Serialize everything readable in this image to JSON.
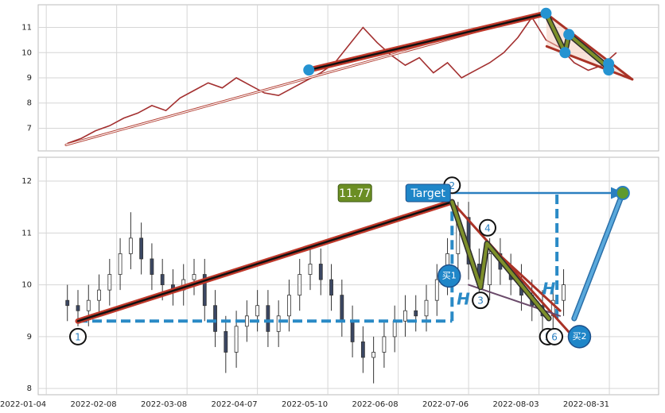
{
  "chart_data": [
    {
      "type": "line",
      "color": "#a33030",
      "x": [
        6,
        10,
        14,
        18,
        22,
        26,
        30,
        34,
        38,
        42,
        46,
        50,
        54,
        58,
        62,
        66,
        70,
        74,
        78,
        82,
        86,
        90,
        94,
        98,
        102,
        106,
        110,
        114,
        118,
        122,
        126,
        130,
        134,
        138,
        142,
        146,
        150,
        154,
        158,
        162
      ],
      "values": [
        6.4,
        6.6,
        6.9,
        7.1,
        7.4,
        7.6,
        7.9,
        7.7,
        8.2,
        8.5,
        8.8,
        8.6,
        9.0,
        8.7,
        8.4,
        8.3,
        8.6,
        8.9,
        9.2,
        9.6,
        10.3,
        11.0,
        10.4,
        9.9,
        9.5,
        9.8,
        9.2,
        9.6,
        9.0,
        9.3,
        9.6,
        10.0,
        10.6,
        11.4,
        10.5,
        10.2,
        9.6,
        9.3,
        9.5,
        10.0
      ],
      "xlim": [
        -2.3,
        174
      ],
      "xticks": [
        0,
        20,
        40,
        60,
        80,
        100,
        120,
        140,
        160
      ],
      "ylim": [
        6.1,
        11.9
      ],
      "yticks": [
        7,
        8,
        9,
        10,
        11
      ],
      "grid": true,
      "annotations": {
        "arrow": [
          [
            5.6,
            6.34
          ],
          [
            141.8,
            11.59
          ]
        ],
        "trend": [
          [
            74.6,
            9.31
          ],
          [
            142,
            11.56
          ]
        ],
        "channel": [
          [
            [
              142,
              11.56
            ],
            [
              166.5,
              8.94
            ]
          ],
          [
            [
              142.2,
              10.25
            ],
            [
              166.5,
              8.94
            ]
          ]
        ],
        "zigzag": [
          [
            142,
            11.56
          ],
          [
            147.4,
            10.0
          ],
          [
            148.5,
            10.72
          ],
          [
            159.8,
            9.4
          ]
        ],
        "dots": [
          [
            74.6,
            9.31
          ],
          [
            142,
            11.56
          ],
          [
            148.5,
            10.72
          ],
          [
            147.4,
            10.0
          ],
          [
            159.8,
            9.56
          ],
          [
            159.8,
            9.31
          ]
        ]
      }
    },
    {
      "type": "candlestick",
      "x": [
        6,
        9,
        12,
        15,
        18,
        21,
        24,
        27,
        30,
        33,
        36,
        39,
        42,
        45,
        48,
        51,
        54,
        57,
        60,
        63,
        66,
        69,
        72,
        75,
        78,
        81,
        84,
        87,
        90,
        93,
        96,
        99,
        102,
        105,
        108,
        111,
        114,
        117,
        120,
        123,
        126,
        129,
        132,
        135,
        138,
        141,
        144,
        147
      ],
      "open": [
        9.7,
        9.6,
        9.5,
        9.7,
        9.9,
        10.2,
        10.6,
        10.9,
        10.5,
        10.2,
        10.0,
        9.9,
        10.1,
        10.2,
        9.6,
        9.1,
        8.7,
        9.2,
        9.4,
        9.6,
        9.1,
        9.4,
        9.8,
        10.2,
        10.4,
        10.1,
        9.8,
        9.3,
        8.9,
        8.6,
        8.7,
        9.0,
        9.3,
        9.5,
        9.4,
        9.7,
        10.1,
        10.6,
        11.3,
        10.4,
        10.0,
        10.6,
        10.3,
        10.1,
        9.8,
        9.6,
        9.4,
        9.7
      ],
      "high": [
        10.0,
        9.9,
        10.0,
        10.2,
        10.5,
        10.9,
        11.4,
        11.2,
        10.8,
        10.5,
        10.3,
        10.4,
        10.5,
        10.5,
        9.9,
        9.4,
        9.5,
        9.7,
        9.9,
        9.9,
        9.7,
        10.1,
        10.5,
        10.7,
        10.7,
        10.4,
        10.1,
        9.6,
        9.2,
        9.0,
        9.3,
        9.6,
        9.8,
        9.8,
        10.0,
        10.4,
        10.9,
        11.6,
        11.6,
        10.7,
        10.9,
        10.9,
        10.6,
        10.4,
        10.1,
        9.9,
        10.0,
        10.3
      ],
      "low": [
        9.3,
        9.2,
        9.2,
        9.4,
        9.6,
        9.9,
        10.3,
        10.2,
        9.9,
        9.7,
        9.6,
        9.6,
        9.8,
        9.3,
        8.8,
        8.3,
        8.4,
        8.9,
        9.1,
        8.8,
        8.8,
        9.1,
        9.5,
        9.9,
        9.8,
        9.5,
        9.0,
        8.6,
        8.3,
        8.1,
        8.4,
        8.7,
        9.0,
        9.1,
        9.1,
        9.4,
        9.8,
        10.3,
        10.1,
        9.7,
        9.7,
        10.0,
        9.8,
        9.5,
        9.3,
        9.1,
        9.1,
        9.4
      ],
      "close": [
        9.6,
        9.5,
        9.7,
        9.9,
        10.2,
        10.6,
        10.9,
        10.5,
        10.2,
        10.0,
        9.9,
        10.1,
        10.2,
        9.6,
        9.1,
        8.7,
        9.2,
        9.4,
        9.6,
        9.1,
        9.4,
        9.8,
        10.2,
        10.4,
        10.1,
        9.8,
        9.3,
        8.9,
        8.6,
        8.7,
        9.0,
        9.3,
        9.5,
        9.4,
        9.7,
        10.1,
        10.6,
        11.3,
        10.4,
        10.0,
        10.6,
        10.3,
        10.1,
        9.8,
        9.6,
        9.4,
        9.7,
        10.0
      ],
      "xlim": [
        -2.3,
        174
      ],
      "xticks": [
        {
          "value": 0,
          "label": "2022-01-04"
        },
        {
          "value": 20,
          "label": "2022-02-08"
        },
        {
          "value": 40,
          "label": "2022-03-08"
        },
        {
          "value": 60,
          "label": "2022-04-07"
        },
        {
          "value": 80,
          "label": "2022-05-10"
        },
        {
          "value": 100,
          "label": "2022-06-08"
        },
        {
          "value": 120,
          "label": "2022-07-06"
        },
        {
          "value": 140,
          "label": "2022-08-03"
        },
        {
          "value": 160,
          "label": "2022-08-31"
        }
      ],
      "ylim": [
        7.88,
        12.46
      ],
      "yticks": [
        8,
        9,
        10,
        11,
        12
      ],
      "grid": true,
      "annotations": {
        "trend": [
          [
            9,
            9.3
          ],
          [
            115.3,
            11.6
          ]
        ],
        "zigzag": [
          [
            115.3,
            11.6
          ],
          [
            123.4,
            9.95
          ],
          [
            125.2,
            10.8
          ],
          [
            142.8,
            9.35
          ]
        ],
        "channel": [
          [
            [
              115.3,
              11.6
            ],
            [
              149,
              9.05
            ]
          ],
          [
            [
              125.2,
              10.8
            ],
            [
              146,
              9.5
            ]
          ],
          [
            [
              120,
              10.0
            ],
            [
              146,
              9.4
            ]
          ]
        ],
        "base": [
          [
            9,
            9.3
          ],
          [
            115.3,
            9.3
          ]
        ],
        "rise": [
          [
            115.3,
            9.3
          ],
          [
            115.3,
            11.6
          ]
        ],
        "rise2": [
          [
            145.1,
            9.35
          ],
          [
            145.1,
            11.77
          ]
        ],
        "target": [
          [
            115.3,
            11.77
          ],
          [
            163.8,
            11.77
          ]
        ],
        "buy2": [
          [
            150,
            9.35
          ],
          [
            163.8,
            11.77
          ]
        ],
        "labels": [
          {
            "text": "1",
            "x": 9,
            "y": 9.0,
            "kind": "circle"
          },
          {
            "text": "2",
            "x": 115.3,
            "y": 11.92,
            "kind": "circle"
          },
          {
            "text": "3",
            "x": 123.4,
            "y": 9.7,
            "kind": "circle"
          },
          {
            "text": "4",
            "x": 125.4,
            "y": 11.1,
            "kind": "circle"
          },
          {
            "text": "5",
            "x": 142.5,
            "y": 9.0,
            "kind": "circle"
          },
          {
            "text": "6",
            "x": 144.4,
            "y": 9.0,
            "kind": "circle"
          },
          {
            "text": "买1",
            "x": 114.5,
            "y": 10.17,
            "kind": "buy"
          },
          {
            "text": "买2",
            "x": 151.5,
            "y": 9.0,
            "kind": "buy"
          },
          {
            "text": "Target",
            "x": 108.5,
            "y": 11.77,
            "kind": "target"
          },
          {
            "text": "11.77",
            "x": 87.7,
            "y": 11.77,
            "kind": "value"
          },
          {
            "text": "H",
            "x": 118.5,
            "y": 9.7,
            "kind": "h"
          },
          {
            "text": "H",
            "x": 142.8,
            "y": 9.9,
            "kind": "h"
          }
        ]
      }
    }
  ]
}
